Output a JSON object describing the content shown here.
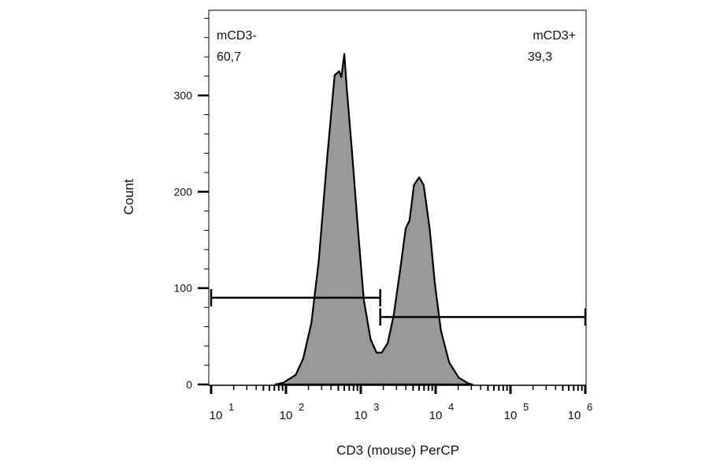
{
  "chart_data": {
    "type": "area",
    "title": "",
    "xlabel": "CD3 (mouse) PerCP",
    "ylabel": "Count",
    "x_scale": "log",
    "xlim": [
      10,
      1000000
    ],
    "ylim": [
      0,
      385
    ],
    "x_ticks": [
      {
        "base": "10",
        "exp": "1",
        "value": 10
      },
      {
        "base": "10",
        "exp": "2",
        "value": 100
      },
      {
        "base": "10",
        "exp": "3",
        "value": 1000
      },
      {
        "base": "10",
        "exp": "4",
        "value": 10000
      },
      {
        "base": "10",
        "exp": "5",
        "value": 100000
      },
      {
        "base": "10",
        "exp": "6",
        "value": 1000000
      }
    ],
    "y_ticks": [
      "0",
      "100",
      "200",
      "300"
    ],
    "y_tick_values": [
      0,
      100,
      200,
      300
    ],
    "grid": false,
    "fill_color": "#999999",
    "line_color": "#000000",
    "series": [
      {
        "x": [
          72,
          93,
          135,
          170,
          219,
          275,
          355,
          447,
          513,
          550,
          603,
          646,
          759,
          933,
          1096,
          1349,
          1622,
          1905,
          2291,
          2754,
          3388,
          3981,
          4467,
          5129,
          6026,
          6918,
          8318,
          9772,
          11749,
          15136,
          20417,
          27542,
          30903
        ],
        "y": [
          0,
          2,
          10,
          27,
          64,
          129,
          235,
          321,
          325,
          319,
          343,
          309,
          244,
          154,
          88,
          47,
          33,
          33,
          43,
          72,
          121,
          162,
          170,
          207,
          215,
          207,
          162,
          105,
          56,
          23,
          7,
          1,
          0
        ]
      }
    ],
    "gates": [
      {
        "name": "mCD3-",
        "value": "60,7",
        "x_from": 10,
        "x_to": 1820,
        "y": 90,
        "label_align": "left"
      },
      {
        "name": "mCD3+",
        "value": "39,3",
        "x_from": 1820,
        "x_to": 1000000,
        "y": 70,
        "label_align": "right"
      }
    ]
  }
}
